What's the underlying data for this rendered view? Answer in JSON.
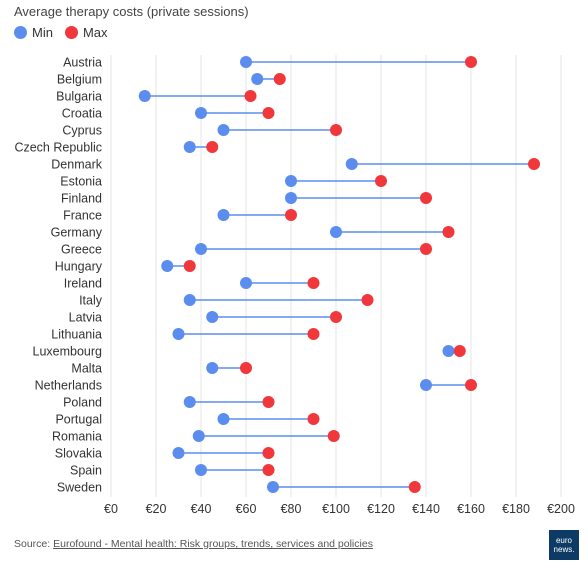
{
  "chart_data": {
    "type": "dumbbell",
    "title": "Average therapy costs (private sessions)",
    "legend": [
      {
        "name": "Min",
        "color": "#5b8def"
      },
      {
        "name": "Max",
        "color": "#f0373b"
      }
    ],
    "categories": [
      "Austria",
      "Belgium",
      "Bulgaria",
      "Croatia",
      "Cyprus",
      "Czech Republic",
      "Denmark",
      "Estonia",
      "Finland",
      "France",
      "Germany",
      "Greece",
      "Hungary",
      "Ireland",
      "Italy",
      "Latvia",
      "Lithuania",
      "Luxembourg",
      "Malta",
      "Netherlands",
      "Poland",
      "Portugal",
      "Romania",
      "Slovakia",
      "Spain",
      "Sweden"
    ],
    "series": [
      {
        "name": "Min",
        "values": [
          60,
          65,
          15,
          40,
          50,
          35,
          107,
          80,
          80,
          50,
          100,
          40,
          25,
          60,
          35,
          45,
          30,
          150,
          45,
          140,
          35,
          50,
          39,
          30,
          40,
          72
        ]
      },
      {
        "name": "Max",
        "values": [
          160,
          75,
          62,
          70,
          100,
          45,
          188,
          120,
          140,
          80,
          150,
          140,
          35,
          90,
          114,
          100,
          90,
          155,
          60,
          160,
          70,
          90,
          99,
          70,
          70,
          135
        ]
      }
    ],
    "xlim": [
      0,
      200
    ],
    "xticks": [
      0,
      20,
      40,
      60,
      80,
      100,
      120,
      140,
      160,
      180,
      200
    ],
    "xtick_labels": [
      "€0",
      "€20",
      "€40",
      "€60",
      "€80",
      "€100",
      "€120",
      "€140",
      "€160",
      "€180",
      "€200"
    ],
    "grid": true,
    "legend_position": "top-left"
  },
  "source": {
    "prefix": "Source:",
    "link_text": "Eurofound - Mental health: Risk groups, trends, services and policies"
  },
  "logo": {
    "line1": "euro",
    "line2": "news."
  }
}
